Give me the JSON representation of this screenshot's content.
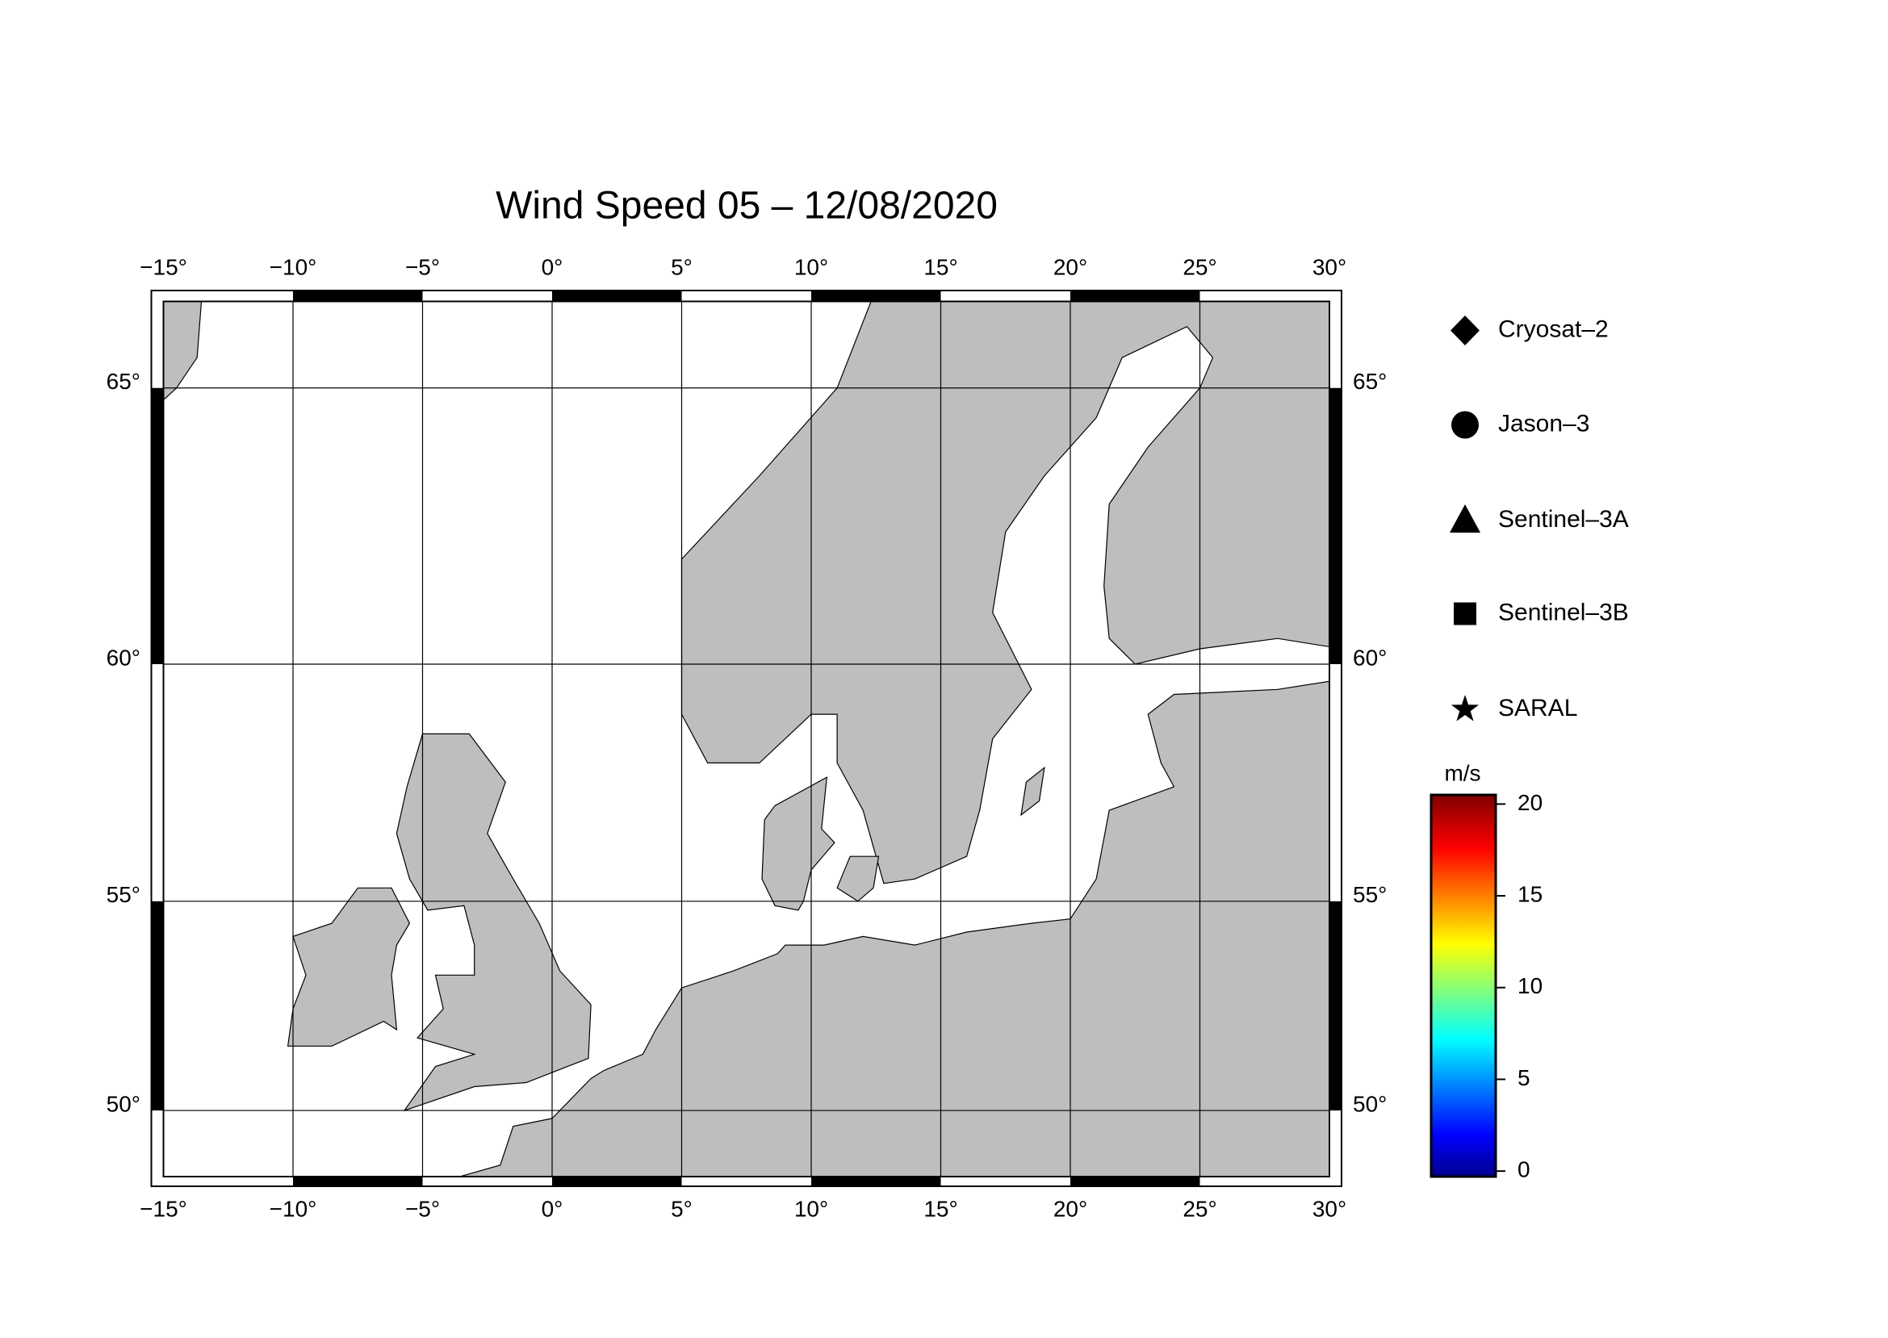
{
  "title": "Wind Speed 05 – 12/08/2020",
  "map": {
    "lon_range": [
      -15,
      30
    ],
    "lat_range": [
      48.3,
      66.4
    ],
    "lon_ticks": [
      {
        "value": -15,
        "label": "−15°"
      },
      {
        "value": -10,
        "label": "−10°"
      },
      {
        "value": -5,
        "label": "−5°"
      },
      {
        "value": 0,
        "label": "0°"
      },
      {
        "value": 5,
        "label": "5°"
      },
      {
        "value": 10,
        "label": "10°"
      },
      {
        "value": 15,
        "label": "15°"
      },
      {
        "value": 20,
        "label": "20°"
      },
      {
        "value": 25,
        "label": "25°"
      },
      {
        "value": 30,
        "label": "30°"
      }
    ],
    "lat_ticks": [
      {
        "value": 50,
        "label": "50°"
      },
      {
        "value": 55,
        "label": "55°"
      },
      {
        "value": 60,
        "label": "60°"
      },
      {
        "value": 65,
        "label": "65°"
      }
    ]
  },
  "legend": [
    "Cryosat–2",
    "Jason–3",
    "Sentinel–3A",
    "Sentinel–3B",
    "SARAL"
  ],
  "colorbar": {
    "unit": "m/s",
    "range": [
      -0.3,
      20.5
    ],
    "ticks": [
      0,
      5,
      10,
      15,
      20
    ]
  }
}
